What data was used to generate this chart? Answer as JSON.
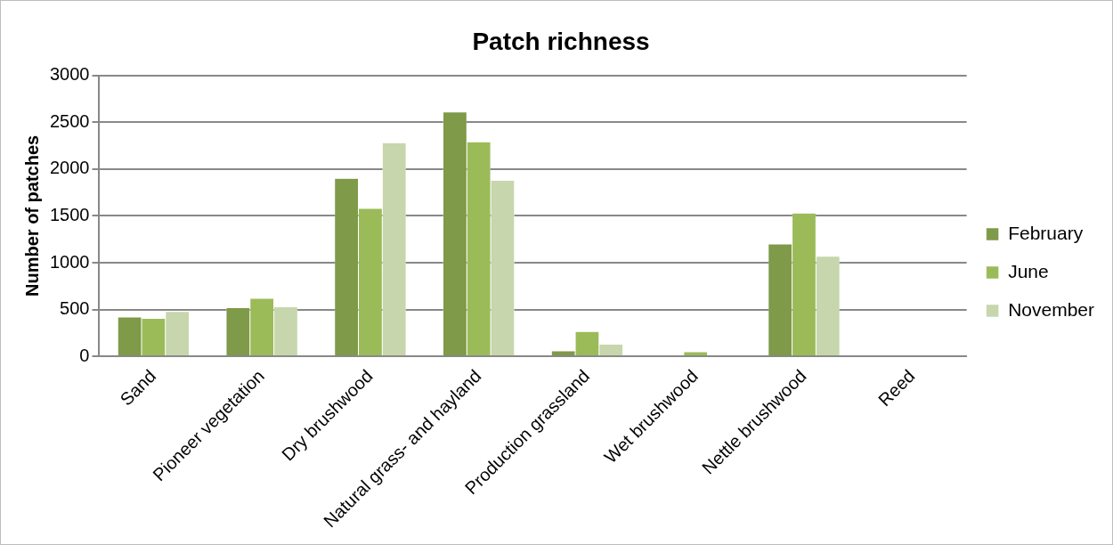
{
  "chart_data": {
    "type": "bar",
    "title": "Patch richness",
    "ylabel": "Number of patches",
    "categories": [
      "Sand",
      "Pioneer vegetation",
      "Dry brushwood",
      "Natural grass- and hayland",
      "Production grassland",
      "Wet brushwood",
      "Nettle brushwood",
      "Reed"
    ],
    "series": [
      {
        "name": "February",
        "color": "#7f9a48",
        "values": [
          420,
          520,
          1900,
          2610,
          60,
          0,
          1200,
          0
        ]
      },
      {
        "name": "June",
        "color": "#9bbb59",
        "values": [
          405,
          620,
          1580,
          2290,
          265,
          50,
          1530,
          0
        ]
      },
      {
        "name": "November",
        "color": "#c7d6ac",
        "values": [
          480,
          530,
          2280,
          1880,
          130,
          0,
          1070,
          0
        ]
      }
    ],
    "ylim": [
      0,
      3000
    ],
    "yticks": [
      0,
      500,
      1000,
      1500,
      2000,
      2500,
      3000
    ],
    "grid": "y",
    "legend": "right"
  }
}
